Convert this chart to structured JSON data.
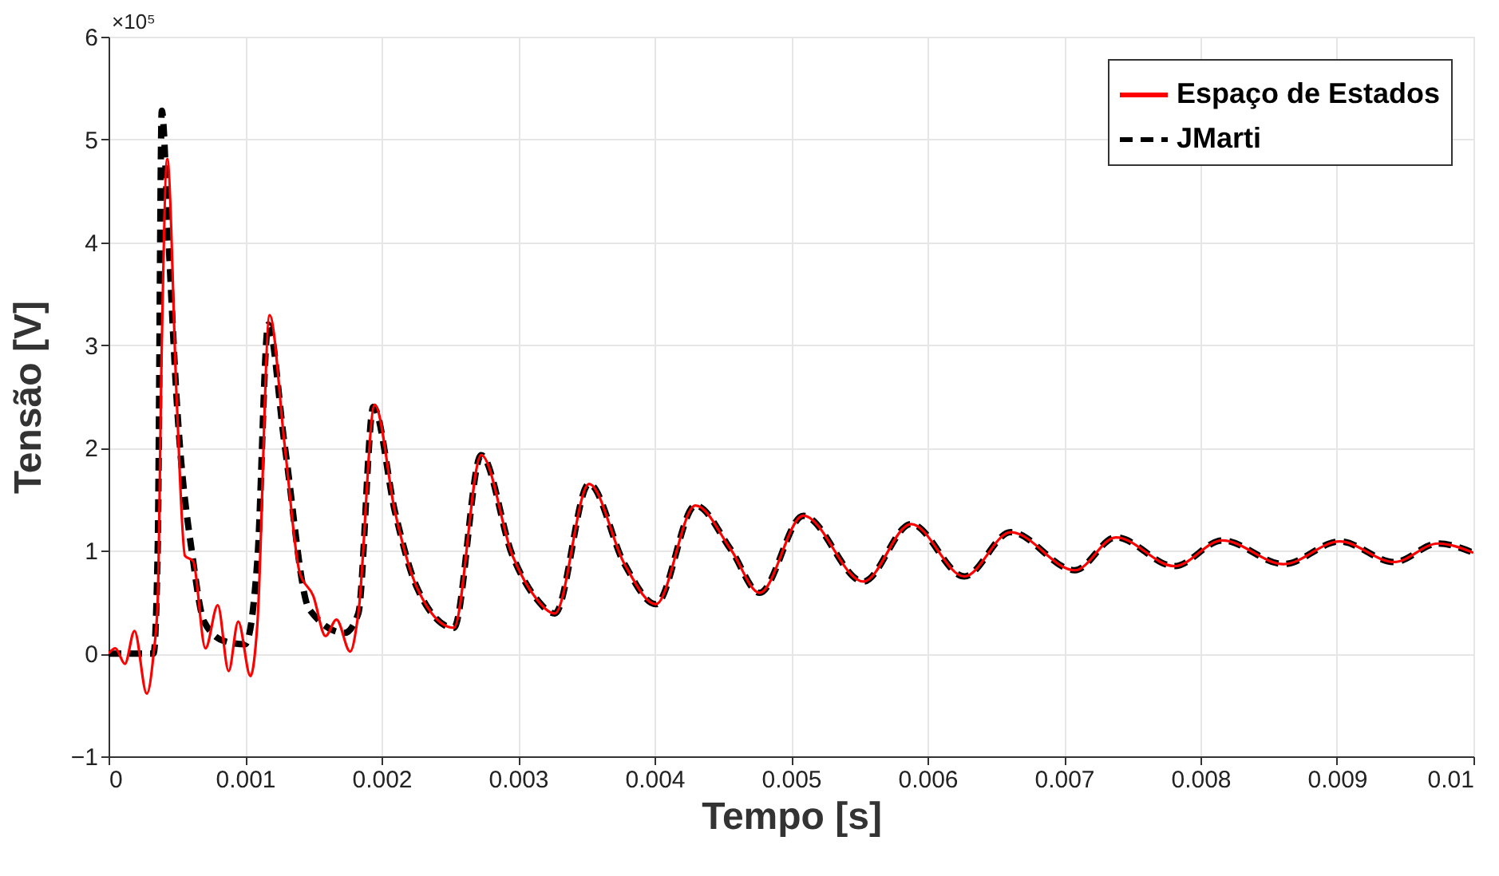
{
  "chart_data": {
    "type": "line",
    "xlabel": "Tempo [s]",
    "ylabel": "Tensão [V]",
    "annotations": [
      "×10⁵"
    ],
    "xlim": [
      0,
      0.01
    ],
    "xticks": [
      0,
      0.001,
      0.002,
      0.003,
      0.004,
      0.005,
      0.006,
      0.007,
      0.008,
      0.009,
      0.01
    ],
    "ylim": [
      -1,
      6
    ],
    "yticks": [
      -1,
      0,
      1,
      2,
      3,
      4,
      5,
      6
    ],
    "grid": true,
    "legend": "top right",
    "marker": "none",
    "series": [
      {
        "name": "Espaço de Estados",
        "color": "#ff0000",
        "line_style": "solid",
        "x": [
          0,
          5e-05,
          0.00012,
          0.00019,
          0.00028,
          0.00033,
          0.00036,
          0.00039,
          0.00043,
          0.0005,
          0.00056,
          0.00062,
          0.00071,
          0.0008,
          0.00088,
          0.00095,
          0.00104,
          0.00109,
          0.00118,
          0.00129,
          0.0014,
          0.0015,
          0.00159,
          0.00167,
          0.00177,
          0.00183,
          0.00195,
          0.0021,
          0.00226,
          0.00253,
          0.00273,
          0.00296,
          0.00313,
          0.00327,
          0.00352,
          0.00378,
          0.00401,
          0.0043,
          0.00456,
          0.00477,
          0.00509,
          0.00553,
          0.00588,
          0.00627,
          0.00661,
          0.00708,
          0.00738,
          0.00781,
          0.00816,
          0.00861,
          0.00902,
          0.00942,
          0.00974,
          0.01
        ],
        "values": [
          0,
          0.05,
          -0.1,
          0.22,
          -0.39,
          0,
          0.5,
          3.0,
          4.81,
          2.45,
          0.95,
          0.9,
          0.05,
          0.47,
          -0.17,
          0.31,
          -0.22,
          0.28,
          3.29,
          2.03,
          0.79,
          0.56,
          0.17,
          0.33,
          0.02,
          0.39,
          2.42,
          1.37,
          0.64,
          0.25,
          1.93,
          0.95,
          0.54,
          0.39,
          1.65,
          0.87,
          0.48,
          1.44,
          1.01,
          0.59,
          1.34,
          0.7,
          1.26,
          0.75,
          1.18,
          0.81,
          1.13,
          0.85,
          1.1,
          0.87,
          1.09,
          0.89,
          1.07,
          0.98
        ]
      },
      {
        "name": "JMarti",
        "color": "#000000",
        "line_style": "dashed",
        "x": [
          0,
          0.00033,
          0.00036,
          0.00039,
          0.00044,
          0.0005,
          0.00062,
          0.0007,
          0.00085,
          0.001,
          0.00109,
          0.00117,
          0.00129,
          0.00147,
          0.00173,
          0.00183,
          0.00194,
          0.0021,
          0.00226,
          0.00253,
          0.00273,
          0.00296,
          0.00313,
          0.00327,
          0.00352,
          0.00378,
          0.00401,
          0.0043,
          0.00456,
          0.00477,
          0.00509,
          0.00553,
          0.00588,
          0.00627,
          0.00661,
          0.00708,
          0.00738,
          0.00781,
          0.00816,
          0.00861,
          0.00902,
          0.00942,
          0.00974,
          0.01
        ],
        "values": [
          0,
          0,
          1.0,
          5.28,
          4.0,
          2.45,
          0.9,
          0.31,
          0.12,
          0.09,
          0.9,
          3.2,
          2.03,
          0.43,
          0.2,
          0.39,
          2.4,
          1.37,
          0.64,
          0.25,
          1.93,
          0.95,
          0.54,
          0.39,
          1.65,
          0.87,
          0.48,
          1.44,
          1.01,
          0.59,
          1.34,
          0.7,
          1.26,
          0.75,
          1.18,
          0.81,
          1.13,
          0.85,
          1.1,
          0.87,
          1.09,
          0.89,
          1.07,
          0.98
        ]
      }
    ]
  }
}
